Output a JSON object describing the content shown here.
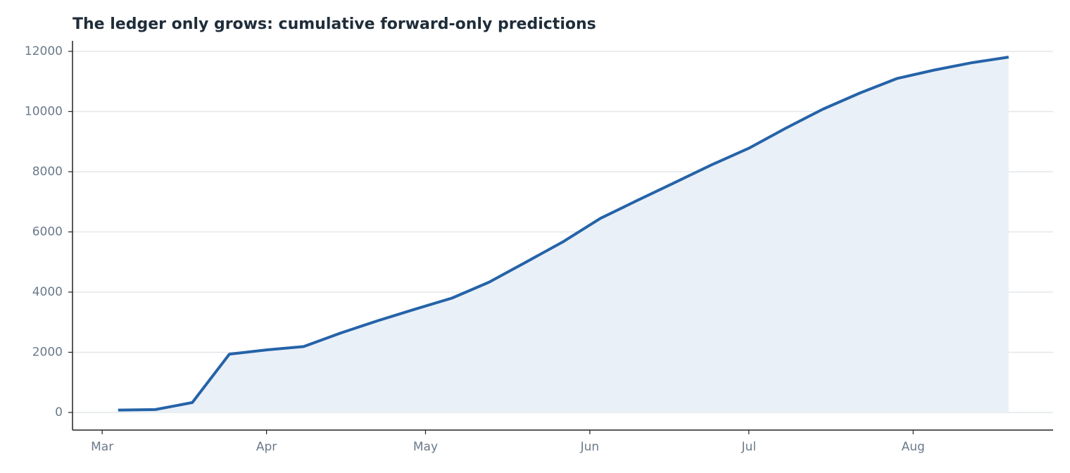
{
  "chart_data": {
    "type": "area",
    "title": "The ledger only grows: cumulative forward-only predictions",
    "x": [
      3,
      10,
      17,
      24,
      31,
      38,
      45,
      52,
      59,
      66,
      73,
      80,
      87,
      94,
      101,
      108,
      115,
      122,
      129,
      136,
      143,
      150,
      157,
      164,
      171
    ],
    "values": [
      80,
      95,
      330,
      1940,
      2080,
      2190,
      2640,
      3050,
      3430,
      3800,
      4330,
      5000,
      5680,
      6450,
      7050,
      7640,
      8230,
      8780,
      9450,
      10080,
      10620,
      11100,
      11380,
      11620,
      11810
    ],
    "color": "#2563a8",
    "fill_color": "#eaf0f8",
    "xlim": [
      -5.6,
      179.4
    ],
    "xticks": [
      {
        "value": 0,
        "label": "Mar"
      },
      {
        "value": 31,
        "label": "Apr"
      },
      {
        "value": 61,
        "label": "May"
      },
      {
        "value": 92,
        "label": "Jun"
      },
      {
        "value": 122,
        "label": "Jul"
      },
      {
        "value": 153,
        "label": "Aug"
      }
    ],
    "ylim": [
      -585,
      12350
    ],
    "yticks": [
      0,
      2000,
      4000,
      6000,
      8000,
      10000,
      12000
    ],
    "grid": true
  }
}
